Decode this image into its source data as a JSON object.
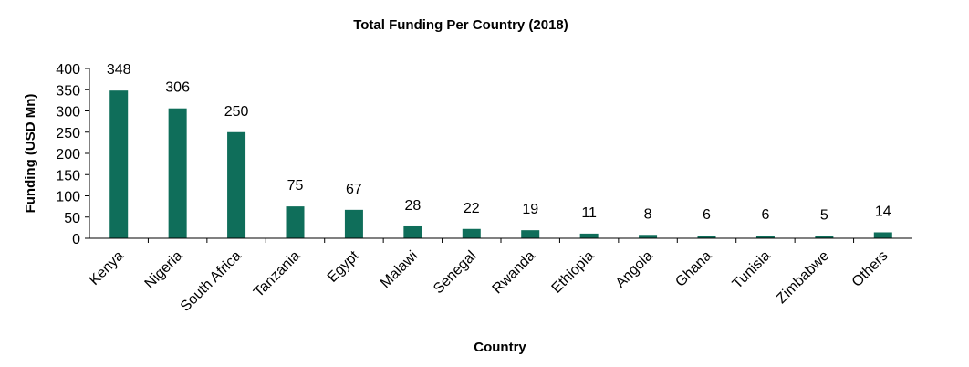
{
  "chart_data": {
    "type": "bar",
    "title": "Total Funding Per Country (2018)",
    "xlabel": "Country",
    "ylabel": "Funding (USD Mn)",
    "ylim": [
      0,
      400
    ],
    "yticks": [
      0,
      50,
      100,
      150,
      200,
      250,
      300,
      350,
      400
    ],
    "grid": false,
    "legend": "none",
    "bar_color": "#0f6e5a",
    "categories": [
      "Kenya",
      "Nigeria",
      "South Africa",
      "Tanzania",
      "Egypt",
      "Malawi",
      "Senegal",
      "Rwanda",
      "Ethiopia",
      "Angola",
      "Ghana",
      "Tunisia",
      "Zimbabwe",
      "Others"
    ],
    "values": [
      348,
      306,
      250,
      75,
      67,
      28,
      22,
      19,
      11,
      8,
      6,
      6,
      5,
      14
    ],
    "data_labels": [
      "348",
      "306",
      "250",
      "75",
      "67",
      "28",
      "22",
      "19",
      "11",
      "8",
      "6",
      "6",
      "5",
      "14"
    ]
  }
}
